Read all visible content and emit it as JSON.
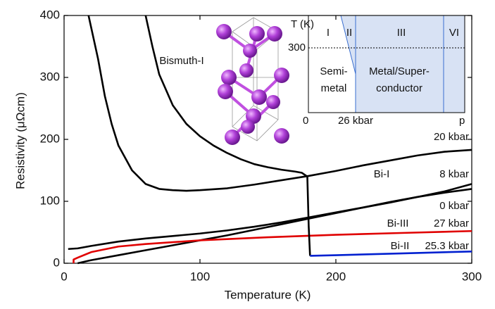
{
  "chart_data": {
    "type": "line",
    "xlabel": "Temperature  (K)",
    "ylabel": "Resistivity  (μΩcm)",
    "xlim": [
      0,
      300
    ],
    "ylim": [
      0,
      400
    ],
    "xticks": [
      0,
      100,
      200,
      300
    ],
    "yticks": [
      0,
      100,
      200,
      300,
      400
    ],
    "series": [
      {
        "name": "20 kbar",
        "phase": "Bi-I",
        "color": "#000000",
        "x": [
          18,
          25,
          30,
          35,
          40,
          50,
          60,
          70,
          80,
          90,
          100,
          120,
          140,
          160,
          180,
          200,
          220,
          240,
          260,
          280,
          300
        ],
        "values": [
          400,
          330,
          270,
          225,
          190,
          150,
          128,
          120,
          118,
          117,
          118,
          121,
          127,
          134,
          141,
          149,
          158,
          166,
          174,
          180,
          183
        ]
      },
      {
        "name": "8 kbar",
        "color": "#000000",
        "x": [
          3,
          10,
          20,
          40,
          60,
          80,
          100,
          120,
          140,
          160,
          180,
          200,
          220,
          240,
          260,
          280,
          300
        ],
        "values": [
          23,
          24,
          28,
          35,
          40,
          44,
          48,
          53,
          59,
          66,
          74,
          82,
          90,
          98,
          107,
          116,
          128
        ]
      },
      {
        "name": "0 kbar",
        "color": "#000000",
        "x": [
          10,
          20,
          40,
          60,
          80,
          100,
          120,
          140,
          160,
          180,
          200,
          220,
          240,
          260,
          280,
          300
        ],
        "values": [
          0,
          5,
          13,
          21,
          29,
          37,
          45,
          54,
          63,
          72,
          81,
          90,
          99,
          107,
          114,
          120
        ]
      },
      {
        "name": "27 kbar",
        "phase": "Bi-III",
        "color": "#e00000",
        "x": [
          7,
          7,
          10,
          20,
          40,
          60,
          80,
          100,
          150,
          200,
          250,
          300
        ],
        "values": [
          0,
          6,
          9,
          18,
          27,
          31,
          34,
          37,
          42,
          46,
          49,
          52
        ]
      },
      {
        "color": "#000000",
        "x": [
          60,
          65,
          70,
          80,
          90,
          100,
          110,
          120,
          130,
          140,
          150,
          160,
          170,
          175,
          179,
          180,
          181
        ],
        "values": [
          400,
          350,
          305,
          255,
          225,
          205,
          190,
          178,
          168,
          160,
          155,
          151,
          148,
          146,
          140,
          60,
          12
        ]
      },
      {
        "name": "25.3 kbar",
        "phase": "Bi-II",
        "color": "#0020d0",
        "x": [
          181,
          200,
          250,
          300
        ],
        "values": [
          12,
          13,
          16,
          19
        ]
      }
    ],
    "structure_label": "Bismuth-I",
    "inset": {
      "ylabel": "T (K)",
      "ytick_300": "300",
      "origin": "0",
      "xtick": "26 kbar",
      "xlabel": "p",
      "phases": [
        "I",
        "II",
        "III",
        "VI"
      ],
      "semimetal": [
        "Semi-",
        "metal"
      ],
      "metal": [
        "Metal/Super-",
        "conductor"
      ]
    }
  }
}
